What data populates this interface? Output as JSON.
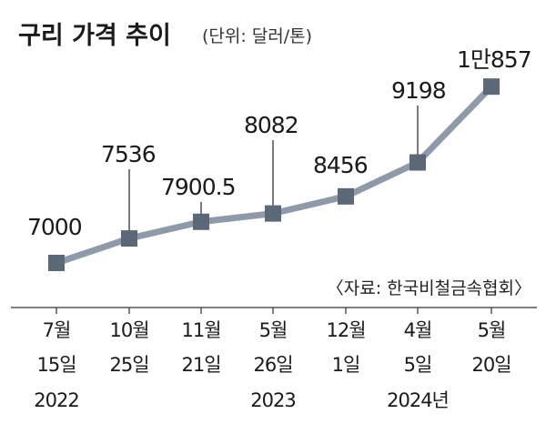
{
  "chart_data": {
    "type": "line",
    "title": "구리 가격 추이",
    "unit": "(단위: 달러/톤)",
    "source": "〈자료: 한국비철금속협회〉",
    "x": [
      {
        "month_day": "7월",
        "day": "15일",
        "year": "2022"
      },
      {
        "month_day": "10월",
        "day": "25일",
        "year": ""
      },
      {
        "month_day": "11월",
        "day": "21일",
        "year": ""
      },
      {
        "month_day": "5월",
        "day": "26일",
        "year": "2023"
      },
      {
        "month_day": "12월",
        "day": "1일",
        "year": ""
      },
      {
        "month_day": "4월",
        "day": "5일",
        "year": ""
      },
      {
        "month_day": "5월",
        "day": "20일",
        "year": ""
      }
    ],
    "year_labels": [
      "2022",
      "2023",
      "2024년"
    ],
    "values": [
      7000,
      7536,
      7900.5,
      8082,
      8456,
      9198,
      10857
    ],
    "value_labels": [
      "7000",
      "7536",
      "7900.5",
      "8082",
      "8456",
      "9198",
      "1만857"
    ],
    "colors": {
      "line": "#8e9aaa",
      "marker": "#5a6878",
      "leader": "#333333"
    }
  }
}
